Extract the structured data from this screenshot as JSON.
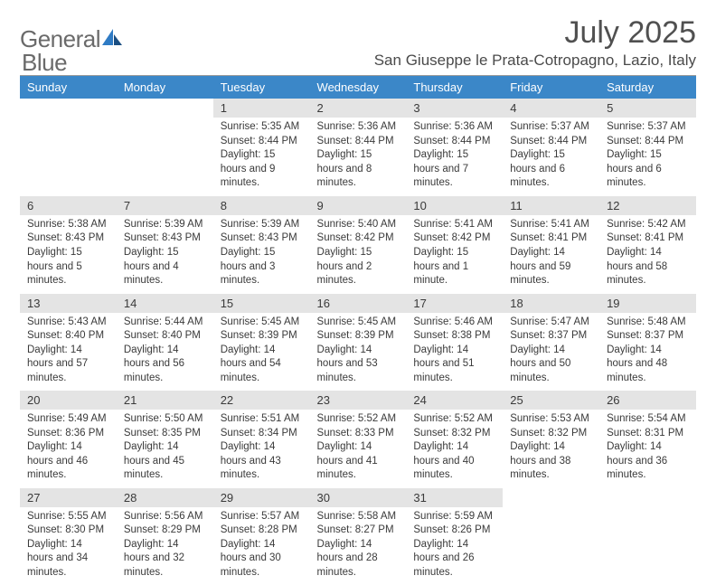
{
  "logo": {
    "word1": "General",
    "word2": "Blue"
  },
  "title": "July 2025",
  "location": "San Giuseppe le Prata-Cotropagno, Lazio, Italy",
  "colors": {
    "header_bg": "#3b87c8",
    "header_text": "#ffffff",
    "daynum_bg": "#e4e4e4",
    "text": "#3a3a3a",
    "logo_gray": "#6a6a6a",
    "logo_blue": "#2f7bc4",
    "divider": "#9a9a9a",
    "body_text": "#3a3a3a"
  },
  "typography": {
    "title_fontsize": 34,
    "location_fontsize": 17,
    "header_fontsize": 13,
    "daynum_fontsize": 13,
    "body_fontsize": 11.5,
    "font_family": "Arial"
  },
  "weekday_headers": [
    "Sunday",
    "Monday",
    "Tuesday",
    "Wednesday",
    "Thursday",
    "Friday",
    "Saturday"
  ],
  "labels": {
    "sunrise": "Sunrise:",
    "sunset": "Sunset:",
    "daylight": "Daylight:"
  },
  "weeks": [
    [
      null,
      null,
      {
        "n": "1",
        "sunrise": "5:35 AM",
        "sunset": "8:44 PM",
        "daylight": "15 hours and 9 minutes."
      },
      {
        "n": "2",
        "sunrise": "5:36 AM",
        "sunset": "8:44 PM",
        "daylight": "15 hours and 8 minutes."
      },
      {
        "n": "3",
        "sunrise": "5:36 AM",
        "sunset": "8:44 PM",
        "daylight": "15 hours and 7 minutes."
      },
      {
        "n": "4",
        "sunrise": "5:37 AM",
        "sunset": "8:44 PM",
        "daylight": "15 hours and 6 minutes."
      },
      {
        "n": "5",
        "sunrise": "5:37 AM",
        "sunset": "8:44 PM",
        "daylight": "15 hours and 6 minutes."
      }
    ],
    [
      {
        "n": "6",
        "sunrise": "5:38 AM",
        "sunset": "8:43 PM",
        "daylight": "15 hours and 5 minutes."
      },
      {
        "n": "7",
        "sunrise": "5:39 AM",
        "sunset": "8:43 PM",
        "daylight": "15 hours and 4 minutes."
      },
      {
        "n": "8",
        "sunrise": "5:39 AM",
        "sunset": "8:43 PM",
        "daylight": "15 hours and 3 minutes."
      },
      {
        "n": "9",
        "sunrise": "5:40 AM",
        "sunset": "8:42 PM",
        "daylight": "15 hours and 2 minutes."
      },
      {
        "n": "10",
        "sunrise": "5:41 AM",
        "sunset": "8:42 PM",
        "daylight": "15 hours and 1 minute."
      },
      {
        "n": "11",
        "sunrise": "5:41 AM",
        "sunset": "8:41 PM",
        "daylight": "14 hours and 59 minutes."
      },
      {
        "n": "12",
        "sunrise": "5:42 AM",
        "sunset": "8:41 PM",
        "daylight": "14 hours and 58 minutes."
      }
    ],
    [
      {
        "n": "13",
        "sunrise": "5:43 AM",
        "sunset": "8:40 PM",
        "daylight": "14 hours and 57 minutes."
      },
      {
        "n": "14",
        "sunrise": "5:44 AM",
        "sunset": "8:40 PM",
        "daylight": "14 hours and 56 minutes."
      },
      {
        "n": "15",
        "sunrise": "5:45 AM",
        "sunset": "8:39 PM",
        "daylight": "14 hours and 54 minutes."
      },
      {
        "n": "16",
        "sunrise": "5:45 AM",
        "sunset": "8:39 PM",
        "daylight": "14 hours and 53 minutes."
      },
      {
        "n": "17",
        "sunrise": "5:46 AM",
        "sunset": "8:38 PM",
        "daylight": "14 hours and 51 minutes."
      },
      {
        "n": "18",
        "sunrise": "5:47 AM",
        "sunset": "8:37 PM",
        "daylight": "14 hours and 50 minutes."
      },
      {
        "n": "19",
        "sunrise": "5:48 AM",
        "sunset": "8:37 PM",
        "daylight": "14 hours and 48 minutes."
      }
    ],
    [
      {
        "n": "20",
        "sunrise": "5:49 AM",
        "sunset": "8:36 PM",
        "daylight": "14 hours and 46 minutes."
      },
      {
        "n": "21",
        "sunrise": "5:50 AM",
        "sunset": "8:35 PM",
        "daylight": "14 hours and 45 minutes."
      },
      {
        "n": "22",
        "sunrise": "5:51 AM",
        "sunset": "8:34 PM",
        "daylight": "14 hours and 43 minutes."
      },
      {
        "n": "23",
        "sunrise": "5:52 AM",
        "sunset": "8:33 PM",
        "daylight": "14 hours and 41 minutes."
      },
      {
        "n": "24",
        "sunrise": "5:52 AM",
        "sunset": "8:32 PM",
        "daylight": "14 hours and 40 minutes."
      },
      {
        "n": "25",
        "sunrise": "5:53 AM",
        "sunset": "8:32 PM",
        "daylight": "14 hours and 38 minutes."
      },
      {
        "n": "26",
        "sunrise": "5:54 AM",
        "sunset": "8:31 PM",
        "daylight": "14 hours and 36 minutes."
      }
    ],
    [
      {
        "n": "27",
        "sunrise": "5:55 AM",
        "sunset": "8:30 PM",
        "daylight": "14 hours and 34 minutes."
      },
      {
        "n": "28",
        "sunrise": "5:56 AM",
        "sunset": "8:29 PM",
        "daylight": "14 hours and 32 minutes."
      },
      {
        "n": "29",
        "sunrise": "5:57 AM",
        "sunset": "8:28 PM",
        "daylight": "14 hours and 30 minutes."
      },
      {
        "n": "30",
        "sunrise": "5:58 AM",
        "sunset": "8:27 PM",
        "daylight": "14 hours and 28 minutes."
      },
      {
        "n": "31",
        "sunrise": "5:59 AM",
        "sunset": "8:26 PM",
        "daylight": "14 hours and 26 minutes."
      },
      null,
      null
    ]
  ]
}
